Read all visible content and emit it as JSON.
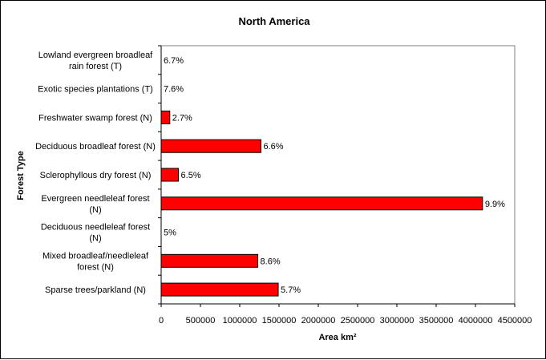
{
  "chart_data": {
    "type": "bar",
    "orientation": "horizontal",
    "title": "North America",
    "xlabel": "Area km²",
    "ylabel": "Forest Type",
    "xlim": [
      0,
      4500000
    ],
    "x_ticks": [
      0,
      500000,
      1000000,
      1500000,
      2000000,
      2500000,
      3000000,
      3500000,
      4000000,
      4500000
    ],
    "x_tick_labels": [
      "0",
      "500000",
      "1000000",
      "1500000",
      "2000000",
      "2500000",
      "3000000",
      "3500000",
      "4000000",
      "4500000"
    ],
    "grid": false,
    "legend": "none",
    "bar_color": "#ff0000",
    "categories": [
      [
        "Lowland evergreen broadleaf",
        "rain forest (T)"
      ],
      [
        "Exotic species plantations (T)"
      ],
      [
        "Freshwater swamp forest (N)"
      ],
      [
        "Deciduous broadleaf forest (N)"
      ],
      [
        "Sclerophyllous dry forest (N)"
      ],
      [
        "Evergreen needleleaf forest",
        "(N)"
      ],
      [
        "Deciduous needleleaf forest",
        "(N)"
      ],
      [
        "Mixed broadleaf/needleleaf",
        "forest (N)"
      ],
      [
        "Sparse trees/parkland (N)"
      ]
    ],
    "values": [
      0,
      0,
      110000,
      1270000,
      220000,
      4090000,
      0,
      1230000,
      1490000
    ],
    "data_labels": [
      "6.7%",
      "7.6%",
      "2.7%",
      "6.6%",
      "6.5%",
      "9.9%",
      "5%",
      "8.6%",
      "5.7%"
    ]
  }
}
